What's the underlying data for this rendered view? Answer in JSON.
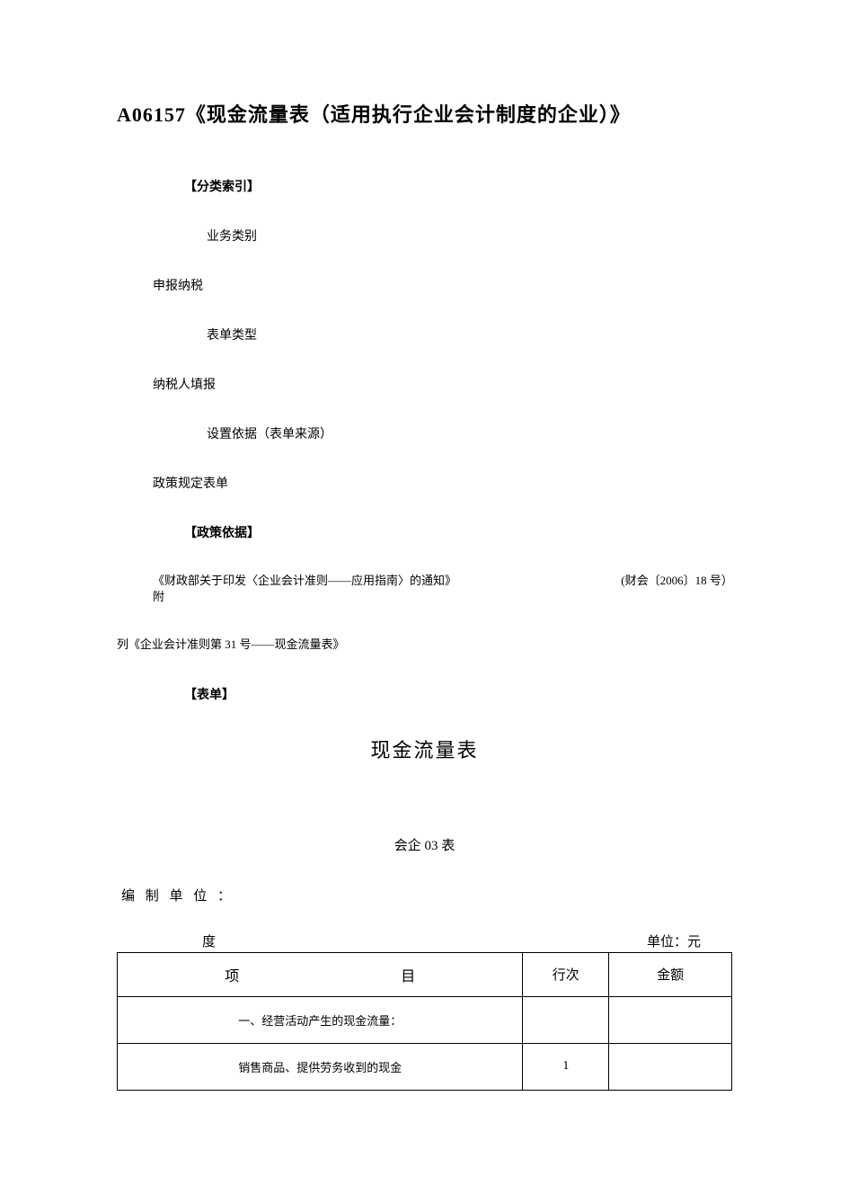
{
  "doc": {
    "title": "A06157《现金流量表（适用执行企业会计制度的企业）》"
  },
  "index": {
    "section_label": "【分类索引】",
    "fields": [
      {
        "label": "业务类别",
        "value": "申报纳税"
      },
      {
        "label": "表单类型",
        "value": "纳税人填报"
      },
      {
        "label": "设置依据（表单来源）",
        "value": "政策规定表单"
      }
    ]
  },
  "policy": {
    "section_label": "【政策依据】",
    "line1_a": "《财政部关于印发〈企业会计准则——应用指南〉的通知》",
    "line1_b": "(财会〔2006〕18 号）附",
    "line2": "列《企业会计准则第 31 号——现金流量表》"
  },
  "form": {
    "section_label": "【表单】",
    "title": "现金流量表",
    "code": "会企 03 表",
    "unit_label": "编 制 单 位 ：",
    "period_label": "度",
    "currency_label": "单位：元",
    "columns": {
      "item": "项目",
      "line": "行次",
      "amount": "金额"
    },
    "rows": [
      {
        "item": "一、经营活动产生的现金流量：",
        "line": "",
        "amount": ""
      },
      {
        "item": "销售商品、提供劳务收到的现金",
        "line": "1",
        "amount": ""
      }
    ]
  },
  "style": {
    "page_bg": "#ffffff",
    "text_color": "#000000",
    "border_color": "#000000",
    "title_fontsize": 22,
    "body_fontsize": 14,
    "form_title_fontsize": 22,
    "table_header_fontsize": 15
  }
}
